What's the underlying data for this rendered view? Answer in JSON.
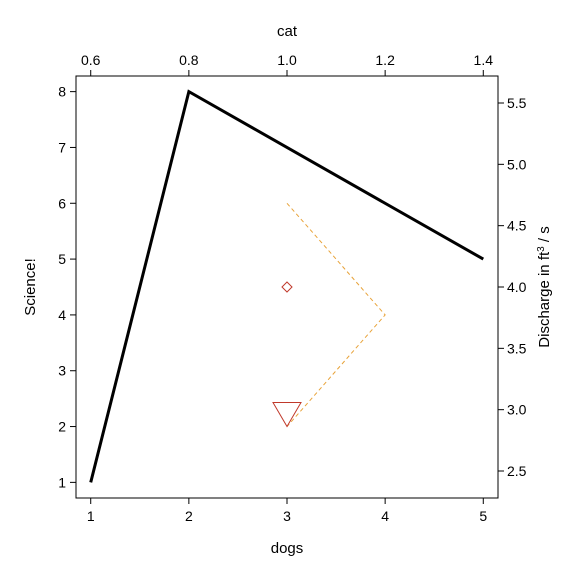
{
  "chart_data": {
    "type": "line",
    "axes": {
      "bottom": {
        "label": "dogs",
        "range": [
          0.85,
          5.15
        ],
        "ticks": [
          1,
          2,
          3,
          4,
          5
        ],
        "tick_labels": [
          "1",
          "2",
          "3",
          "4",
          "5"
        ]
      },
      "left": {
        "label": "Science!",
        "range": [
          0.72,
          8.28
        ],
        "ticks": [
          1,
          2,
          3,
          4,
          5,
          6,
          7,
          8
        ],
        "tick_labels": [
          "1",
          "2",
          "3",
          "4",
          "5",
          "6",
          "7",
          "8"
        ]
      },
      "top": {
        "label": "cat",
        "range": [
          0.57,
          1.43
        ],
        "ticks": [
          0.6,
          0.8,
          1.0,
          1.2,
          1.4
        ],
        "tick_labels": [
          "0.6",
          "0.8",
          "1.0",
          "1.2",
          "1.4"
        ]
      },
      "right": {
        "label_main": "Discharge in ft",
        "label_sup": "3",
        "label_tail": " / s",
        "range": [
          2.28,
          5.72
        ],
        "ticks": [
          2.5,
          3.0,
          3.5,
          4.0,
          4.5,
          5.0,
          5.5
        ],
        "tick_labels": [
          "2.5",
          "3.0",
          "3.5",
          "4.0",
          "4.5",
          "5.0",
          "5.5"
        ]
      }
    },
    "series": [
      {
        "x": [
          1,
          2,
          5
        ],
        "y": [
          1,
          8,
          5
        ],
        "color": "#000000",
        "style": "solid",
        "axes": "bottom-left"
      },
      {
        "x": [
          3,
          4,
          3
        ],
        "y": [
          6,
          4,
          2
        ],
        "color": "#e8a33a",
        "style": "dashed",
        "axes": "bottom-left"
      },
      {
        "x": [
          3
        ],
        "y": [
          4.5
        ],
        "color": "#c0392b",
        "style": "marker",
        "marker": "diamond",
        "axes": "bottom-left"
      },
      {
        "x": [
          3
        ],
        "y": [
          2
        ],
        "color": "#c0392b",
        "style": "marker",
        "marker": "triangle-down",
        "axes": "bottom-left"
      }
    ],
    "grid": false,
    "legend": "none"
  }
}
